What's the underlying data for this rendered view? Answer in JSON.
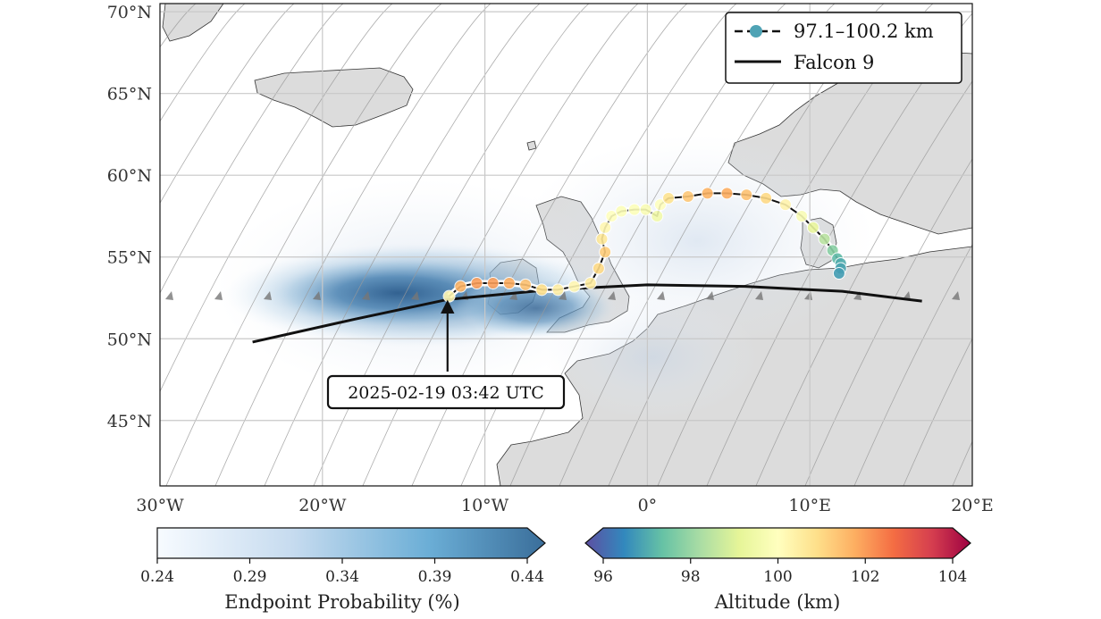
{
  "chart_data": {
    "type": "map",
    "axes": {
      "lon_range": [
        -30,
        20
      ],
      "lat_range": [
        41,
        70.5
      ],
      "x_ticks": [
        "30°W",
        "20°W",
        "10°W",
        "0°",
        "10°E",
        "20°E"
      ],
      "x_tick_values": [
        -30,
        -20,
        -10,
        0,
        10,
        20
      ],
      "y_ticks": [
        "45°N",
        "50°N",
        "55°N",
        "60°N",
        "65°N",
        "70°N"
      ],
      "y_tick_values": [
        45,
        50,
        55,
        60,
        65,
        70
      ],
      "grid": true
    },
    "legend": {
      "placement": "top-right",
      "entries": [
        {
          "label": "97.1–100.2 km",
          "style": "dashed line with circle marker",
          "color": "#4fa3b5"
        },
        {
          "label": "Falcon 9",
          "style": "solid line",
          "color": "#111111"
        }
      ]
    },
    "annotation": {
      "text": "2025-02-19 03:42 UTC",
      "points_to": {
        "lon": -12.3,
        "lat": 52.4
      }
    },
    "falcon9_track": {
      "lon": [
        -24.3,
        -18,
        -12.3,
        -6,
        0,
        6,
        12,
        16.9
      ],
      "lat": [
        49.8,
        51.2,
        52.4,
        53.0,
        53.3,
        53.2,
        52.9,
        52.3
      ]
    },
    "debris_track": {
      "series_name": "97.1–100.2 km",
      "lon": [
        -12.2,
        -11.5,
        -10.5,
        -9.5,
        -8.5,
        -7.5,
        -6.5,
        -5.5,
        -4.5,
        -3.5,
        -3.0,
        -2.6,
        -2.8,
        -2.6,
        -2.2,
        -1.6,
        -0.8,
        -0.1,
        0.6,
        0.8,
        1.3,
        2.5,
        3.7,
        4.9,
        6.1,
        7.3,
        8.5,
        9.5,
        10.2,
        10.9,
        11.4,
        11.7,
        11.9,
        11.9,
        11.8
      ],
      "lat": [
        52.6,
        53.2,
        53.4,
        53.4,
        53.4,
        53.3,
        53.0,
        53.0,
        53.2,
        53.4,
        54.3,
        55.3,
        56.1,
        56.8,
        57.5,
        57.8,
        57.9,
        57.9,
        57.5,
        58.2,
        58.6,
        58.7,
        58.9,
        58.9,
        58.8,
        58.6,
        58.2,
        57.5,
        56.8,
        56.1,
        55.4,
        54.9,
        54.6,
        54.3,
        54.0
      ],
      "altitude_km": [
        100.2,
        101.5,
        101.8,
        101.8,
        101.6,
        101.3,
        100.8,
        100.4,
        100.2,
        100.5,
        100.9,
        101.1,
        100.6,
        100.2,
        100.0,
        99.9,
        99.9,
        99.8,
        99.6,
        100.0,
        100.7,
        101.2,
        101.5,
        101.6,
        101.3,
        100.9,
        100.3,
        99.8,
        99.3,
        98.6,
        98.0,
        97.5,
        97.3,
        97.2,
        97.1
      ]
    },
    "probability_field": {
      "label": "Endpoint Probability (%)",
      "peak": {
        "lon": -15.5,
        "lat": 52.7,
        "value": 0.44
      }
    },
    "colorbars": [
      {
        "label": "Endpoint Probability (%)",
        "range": [
          0.24,
          0.44
        ],
        "ticks": [
          "0.24",
          "0.29",
          "0.34",
          "0.39",
          "0.44"
        ],
        "colors": [
          "#f7fbff",
          "#c6dbef",
          "#6baed6",
          "#3a6e9a"
        ],
        "extend": "max"
      },
      {
        "label": "Altitude (km)",
        "range": [
          96,
          104
        ],
        "ticks": [
          "96",
          "98",
          "100",
          "102",
          "104"
        ],
        "colormap": "Spectral_r",
        "colors": [
          "#5e4fa2",
          "#3288bd",
          "#66c2a5",
          "#abdda4",
          "#e6f598",
          "#ffffbf",
          "#fee08b",
          "#fdae61",
          "#f46d43",
          "#d53e4f",
          "#9e0142"
        ],
        "extend": "both"
      }
    ]
  }
}
